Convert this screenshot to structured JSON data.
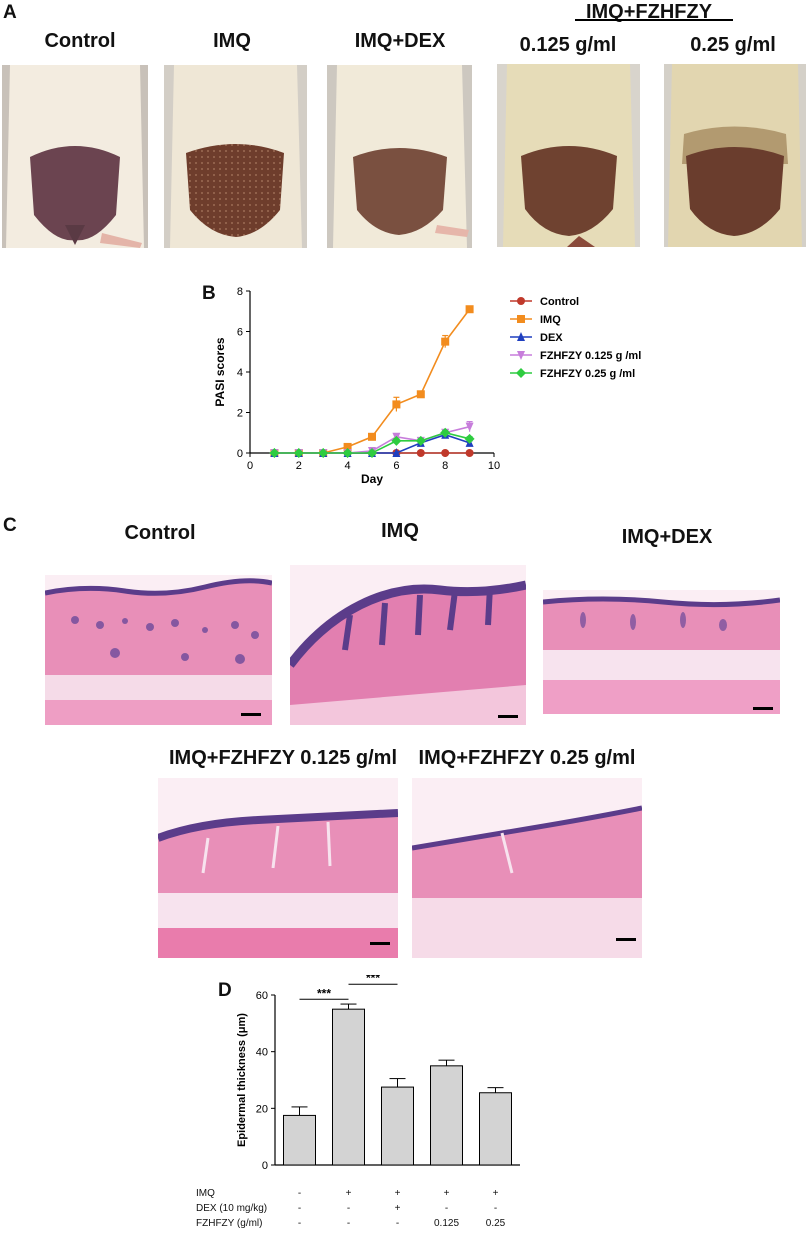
{
  "panel_a": {
    "letter": "A",
    "group_header": "IMQ+FZHFZY",
    "titles": [
      "Control",
      "IMQ",
      "IMQ+DEX",
      "0.125 g/ml",
      "0.25 g/ml"
    ]
  },
  "panel_b": {
    "letter": "B",
    "chart_data": {
      "type": "line",
      "xlabel": "Day",
      "ylabel": "PASI scores",
      "xlim": [
        0,
        10
      ],
      "ylim": [
        0,
        8
      ],
      "xticks": [
        "0",
        "2",
        "4",
        "6",
        "8",
        "10"
      ],
      "yticks": [
        "0",
        "2",
        "4",
        "6",
        "8"
      ],
      "x": [
        1,
        2,
        3,
        4,
        5,
        6,
        7,
        8,
        9
      ],
      "legend_position": "right",
      "series": [
        {
          "name": "Control",
          "color": "#c0392b",
          "marker": "circle",
          "values": [
            0,
            0,
            0,
            0,
            0,
            0,
            0,
            0,
            0
          ],
          "errors": [
            0,
            0,
            0,
            0,
            0,
            0,
            0,
            0,
            0
          ]
        },
        {
          "name": "IMQ",
          "color": "#f28c1e",
          "marker": "square",
          "values": [
            0,
            0,
            0,
            0.3,
            0.8,
            2.4,
            2.9,
            5.5,
            7.1
          ],
          "errors": [
            0,
            0,
            0,
            0.05,
            0.08,
            0.35,
            0.15,
            0.3,
            0.15
          ]
        },
        {
          "name": "DEX",
          "color": "#1f3fbf",
          "marker": "triangle-up",
          "values": [
            0,
            0,
            0,
            0,
            0,
            0,
            0.5,
            0.9,
            0.5
          ],
          "errors": [
            0,
            0,
            0,
            0,
            0,
            0,
            0.1,
            0.1,
            0.1
          ]
        },
        {
          "name": "FZHFZY 0.125 g /ml",
          "color": "#c77ddb",
          "marker": "triangle-down",
          "values": [
            0,
            0,
            0,
            0,
            0.1,
            0.8,
            0.6,
            1.0,
            1.3
          ],
          "errors": [
            0,
            0,
            0,
            0,
            0.05,
            0.15,
            0.1,
            0.1,
            0.25
          ]
        },
        {
          "name": "FZHFZY 0.25 g /ml",
          "color": "#2ecc40",
          "marker": "diamond",
          "values": [
            0,
            0,
            0,
            0,
            0,
            0.6,
            0.6,
            1.0,
            0.7
          ],
          "errors": [
            0,
            0,
            0,
            0,
            0,
            0.1,
            0.1,
            0.1,
            0.1
          ]
        }
      ]
    }
  },
  "panel_c": {
    "letter": "C",
    "titles": [
      "Control",
      "IMQ",
      "IMQ+DEX",
      "IMQ+FZHFZY 0.125 g/ml",
      "IMQ+FZHFZY 0.25 g/ml"
    ]
  },
  "panel_d": {
    "letter": "D",
    "chart_data": {
      "type": "bar",
      "ylabel": "Epidermal thickness (μm)",
      "ylim": [
        0,
        60
      ],
      "yticks": [
        "0",
        "20",
        "40",
        "60"
      ],
      "values": [
        17.5,
        55,
        27.5,
        35,
        25.5
      ],
      "errors": [
        3,
        1.8,
        3,
        2,
        1.8
      ],
      "bar_color": "#d3d3d3",
      "significance": [
        {
          "from": 0,
          "to": 1,
          "label": "***"
        },
        {
          "from": 1,
          "to": 2,
          "label": "***"
        },
        {
          "from": 1,
          "to": 3,
          "label": "***"
        },
        {
          "from": 1,
          "to": 4,
          "label": "***"
        }
      ],
      "treatment_table": [
        {
          "label": "IMQ",
          "values": [
            "-",
            "+",
            "+",
            "+",
            "+"
          ]
        },
        {
          "label": "DEX (10 mg/kg)",
          "values": [
            "-",
            "-",
            "+",
            "-",
            "-"
          ]
        },
        {
          "label": "FZHFZY (g/ml)",
          "values": [
            "-",
            "-",
            "-",
            "0.125",
            "0.25"
          ]
        }
      ]
    }
  }
}
